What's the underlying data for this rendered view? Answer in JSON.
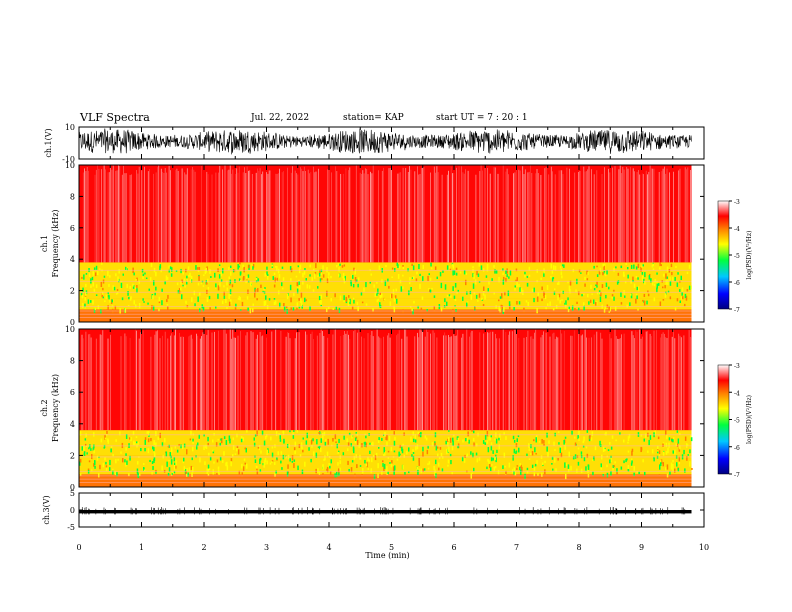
{
  "header": {
    "title": "VLF Spectra",
    "date": "Jul. 22, 2022",
    "station": "station= KAP",
    "start_ut": "start  UT =  7 : 20 : 1"
  },
  "colors": {
    "spectrogram_bg": "#ff2a22",
    "colorbar": [
      "#000080",
      "#0000ff",
      "#00c8ff",
      "#00ff40",
      "#ffff00",
      "#ff8000",
      "#ff0000",
      "#ffffff"
    ]
  },
  "chart_data": [
    {
      "type": "line",
      "name_label": "ch.1(V)",
      "ylabel": "ch.1(V)",
      "ylim": [
        -10,
        10
      ],
      "yticks": [
        "10",
        "-10"
      ],
      "xlim": [
        0,
        10
      ],
      "series": [
        {
          "x_range": [
            0,
            9.8
          ],
          "y_range": [
            -5,
            7
          ],
          "style": "dense noise"
        }
      ]
    },
    {
      "type": "heatmap",
      "ylabel": "Frequency (kHz)",
      "panel_label": "ch.1",
      "ylim": [
        0,
        10
      ],
      "yticks": [
        "0",
        "2",
        "4",
        "6",
        "8",
        "10"
      ],
      "xlim": [
        0,
        10
      ],
      "data_extent_min": 9.8,
      "bands": [
        {
          "from_khz": 0,
          "to_khz": 0.8,
          "level": -4.2
        },
        {
          "from_khz": 0.8,
          "to_khz": 1.5,
          "level": -4.6
        },
        {
          "from_khz": 1.5,
          "to_khz": 3.8,
          "level": -4.8
        },
        {
          "from_khz": 3.8,
          "to_khz": 10,
          "level": -3.6
        }
      ],
      "colorbar": {
        "ticks": [
          "-3",
          "-4",
          "-5",
          "-6",
          "-7"
        ],
        "label": "log(PSD)(V²/Hz)",
        "range": [
          -7,
          -3
        ]
      }
    },
    {
      "type": "heatmap",
      "ylabel": "Frequency (kHz)",
      "panel_label": "ch.2",
      "ylim": [
        0,
        10
      ],
      "yticks": [
        "0",
        "2",
        "4",
        "6",
        "8",
        "10"
      ],
      "xlim": [
        0,
        10
      ],
      "data_extent_min": 9.8,
      "bands": [
        {
          "from_khz": 0,
          "to_khz": 0.8,
          "level": -4.3
        },
        {
          "from_khz": 0.8,
          "to_khz": 2.0,
          "level": -5.0
        },
        {
          "from_khz": 2.0,
          "to_khz": 3.6,
          "level": -4.7
        },
        {
          "from_khz": 3.6,
          "to_khz": 10,
          "level": -3.6
        }
      ],
      "colorbar": {
        "ticks": [
          "-3",
          "-4",
          "-5",
          "-6",
          "-7"
        ],
        "label": "log(PSD)(V²/Hz)",
        "range": [
          -7,
          -3
        ]
      }
    },
    {
      "type": "line",
      "name_label": "ch.3(V)",
      "ylabel": "ch.3(V)",
      "ylim": [
        -5,
        5
      ],
      "yticks": [
        "5",
        "0",
        "-5"
      ],
      "xlim": [
        0,
        10
      ],
      "series": [
        {
          "x_range": [
            0,
            9.8
          ],
          "y_range": [
            -1,
            0
          ],
          "style": "flat band"
        }
      ]
    }
  ],
  "xaxis": {
    "label": "Time (min)",
    "ticks": [
      "0",
      "1",
      "2",
      "3",
      "4",
      "5",
      "6",
      "7",
      "8",
      "9",
      "10"
    ]
  }
}
